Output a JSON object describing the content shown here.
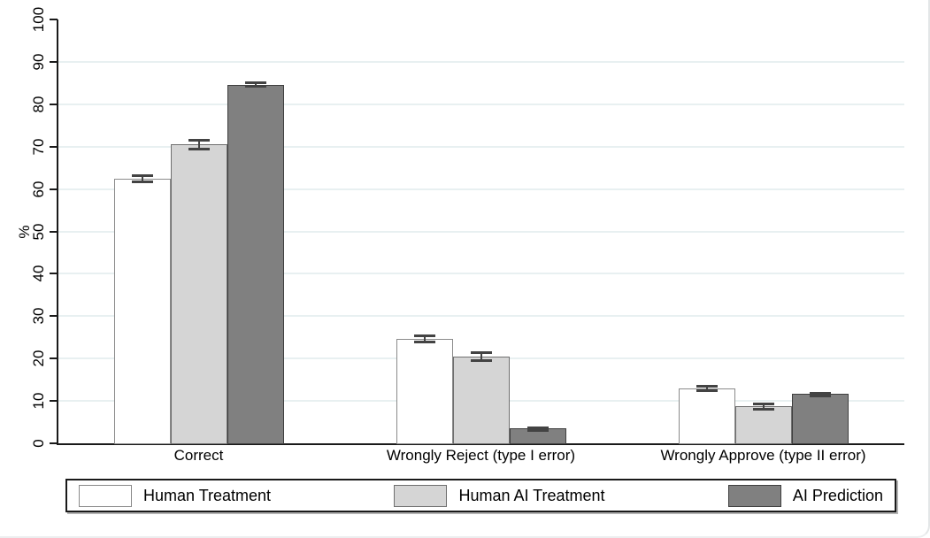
{
  "chart_data": {
    "type": "bar",
    "title": "",
    "ylabel": "%",
    "ylim": [
      0,
      100
    ],
    "yticks": [
      0,
      10,
      20,
      30,
      40,
      50,
      60,
      70,
      80,
      90,
      100
    ],
    "grid": "horizontal pale gridlines at 10 through 90, none at 0 and 100",
    "legend_position": "bottom, boxed, horizontal",
    "categories": [
      "Correct",
      "Wrongly Reject (type I error)",
      "Wrongly Approve (type II error)"
    ],
    "series": [
      {
        "name": "Human Treatment",
        "fill": "#ffffff",
        "stroke": "#8a8a8a",
        "values": [
          62.4,
          24.6,
          13.0
        ],
        "ci_low": [
          61.4,
          23.6,
          12.2
        ],
        "ci_high": [
          63.4,
          25.6,
          13.8
        ]
      },
      {
        "name": "Human AI Treatment",
        "fill": "#d5d5d5",
        "stroke": "#6f6f6f",
        "values": [
          70.5,
          20.5,
          8.7
        ],
        "ci_low": [
          69.2,
          19.3,
          7.8
        ],
        "ci_high": [
          71.8,
          21.7,
          9.6
        ]
      },
      {
        "name": "AI Prediction",
        "fill": "#808080",
        "stroke": "#3f3f3f",
        "values": [
          84.6,
          3.6,
          11.7
        ],
        "ci_low": [
          83.9,
          3.2,
          11.2
        ],
        "ci_high": [
          85.3,
          4.0,
          12.2
        ]
      }
    ],
    "error_bars": true,
    "error_bar_color": "#434343",
    "gridline_color": "#e8f0f1",
    "axis_color": "#1a1a1a"
  }
}
